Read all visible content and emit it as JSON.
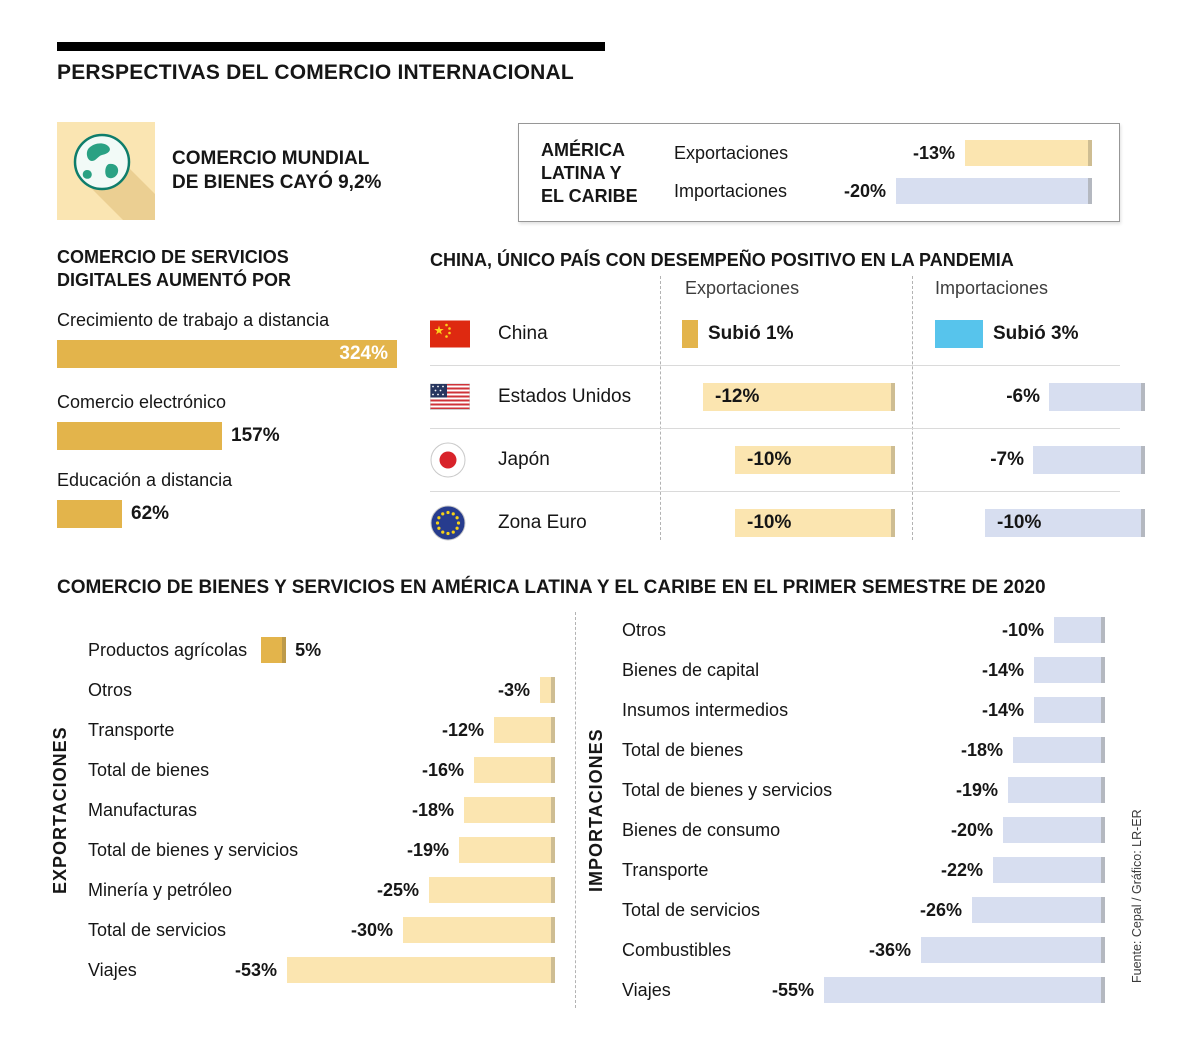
{
  "title": "PERSPECTIVAS DEL COMERCIO INTERNACIONAL",
  "colors": {
    "gold": "#E3B44B",
    "tan": "#FBE5B0",
    "lav": "#D7DEF0",
    "blue": "#57C4EC"
  },
  "world_trade": {
    "icon": "globe-icon",
    "line1": "COMERCIO MUNDIAL",
    "line2": "DE BIENES CAYÓ 9,2%"
  },
  "source": "Fuente: Cepal / Gráfico: LR-ER",
  "chart_data": [
    {
      "id": "latam_totals",
      "type": "bar",
      "region": [
        "AMÉRICA",
        "LATINA Y",
        "EL CARIBE"
      ],
      "rows": [
        {
          "label": "Exportaciones",
          "value_label": "-13%",
          "value": -13
        },
        {
          "label": "Importaciones",
          "value_label": "-20%",
          "value": -20
        }
      ]
    },
    {
      "id": "digital_services",
      "type": "bar",
      "title1": "COMERCIO DE SERVICIOS",
      "title2": "DIGITALES AUMENTÓ POR",
      "rows": [
        {
          "label": "Crecimiento de trabajo a distancia",
          "value_label": "324%",
          "value": 324
        },
        {
          "label": "Comercio electrónico",
          "value_label": "157%",
          "value": 157
        },
        {
          "label": "Educación a distancia",
          "value_label": "62%",
          "value": 62
        }
      ]
    },
    {
      "id": "china_table",
      "type": "table",
      "title": "CHINA, ÚNICO PAÍS CON DESEMPEÑO POSITIVO EN LA PANDEMIA",
      "columns": [
        "Exportaciones",
        "Importaciones"
      ],
      "rows": [
        {
          "country": "China",
          "flag": "china-flag-icon",
          "export_label": "Subió 1%",
          "export": 1,
          "import_label": "Subió 3%",
          "import": 3
        },
        {
          "country": "Estados Unidos",
          "flag": "usa-flag-icon",
          "export_label": "-12%",
          "export": -12,
          "import_label": "-6%",
          "import": -6
        },
        {
          "country": "Japón",
          "flag": "japan-flag-icon",
          "export_label": "-10%",
          "export": -10,
          "import_label": "-7%",
          "import": -7
        },
        {
          "country": "Zona Euro",
          "flag": "eu-flag-icon",
          "export_label": "-10%",
          "export": -10,
          "import_label": "-10%",
          "import": -10
        }
      ]
    },
    {
      "id": "semester_2020",
      "type": "bar",
      "title": "COMERCIO DE BIENES Y SERVICIOS EN AMÉRICA LATINA Y EL CARIBE EN EL PRIMER SEMESTRE DE 2020",
      "exports": {
        "axis_label": "EXPORTACIONES",
        "rows": [
          {
            "label": "Productos agrícolas",
            "value_label": "5%",
            "value": 5
          },
          {
            "label": "Otros",
            "value_label": "-3%",
            "value": -3
          },
          {
            "label": "Transporte",
            "value_label": "-12%",
            "value": -12
          },
          {
            "label": "Total de bienes",
            "value_label": "-16%",
            "value": -16
          },
          {
            "label": "Manufacturas",
            "value_label": "-18%",
            "value": -18
          },
          {
            "label": "Total de bienes y servicios",
            "value_label": "-19%",
            "value": -19
          },
          {
            "label": "Minería y petróleo",
            "value_label": "-25%",
            "value": -25
          },
          {
            "label": "Total de servicios",
            "value_label": "-30%",
            "value": -30
          },
          {
            "label": "Viajes",
            "value_label": "-53%",
            "value": -53
          }
        ]
      },
      "imports": {
        "axis_label": "IMPORTACIONES",
        "rows": [
          {
            "label": "Otros",
            "value_label": "-10%",
            "value": -10
          },
          {
            "label": "Bienes de capital",
            "value_label": "-14%",
            "value": -14
          },
          {
            "label": "Insumos intermedios",
            "value_label": "-14%",
            "value": -14
          },
          {
            "label": "Total de bienes",
            "value_label": "-18%",
            "value": -18
          },
          {
            "label": "Total de bienes y servicios",
            "value_label": "-19%",
            "value": -19
          },
          {
            "label": "Bienes de consumo",
            "value_label": "-20%",
            "value": -20
          },
          {
            "label": "Transporte",
            "value_label": "-22%",
            "value": -22
          },
          {
            "label": "Total de servicios",
            "value_label": "-26%",
            "value": -26
          },
          {
            "label": "Combustibles",
            "value_label": "-36%",
            "value": -36
          },
          {
            "label": "Viajes",
            "value_label": "-55%",
            "value": -55
          }
        ]
      }
    }
  ]
}
